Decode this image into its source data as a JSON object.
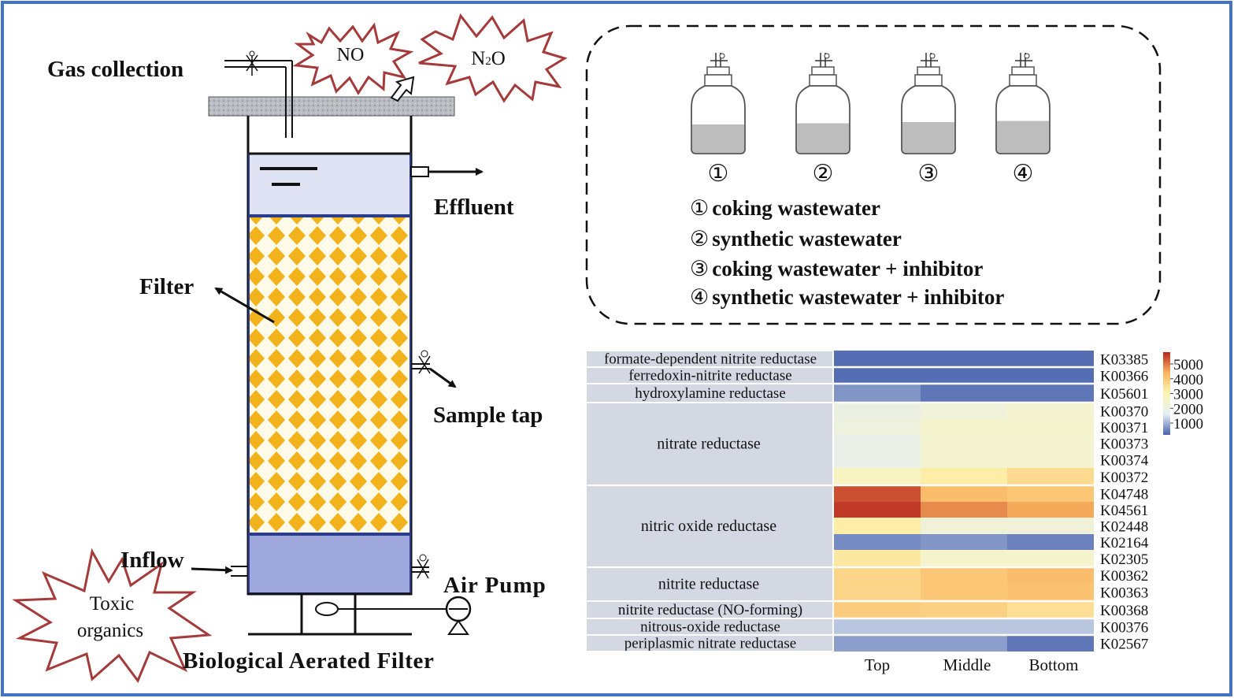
{
  "reactor": {
    "title": "Biological Aerated Filter",
    "gas_collection": "Gas collection",
    "effluent": "Effluent",
    "filter": "Filter",
    "sample_tap": "Sample tap",
    "inflow": "Inflow",
    "air_pump": "Air Pump",
    "toxic_line1": "Toxic",
    "toxic_line2": "organics",
    "gas_no": "NO",
    "gas_n2o_prefix": "N",
    "gas_n2o_sub": "2",
    "gas_n2o_suffix": "O"
  },
  "bottles": {
    "markers": [
      "①",
      "②",
      "③",
      "④"
    ],
    "legend": [
      {
        "marker": "①",
        "text": "coking wastewater"
      },
      {
        "marker": "②",
        "text": "synthetic wastewater"
      },
      {
        "marker": "③",
        "text": "coking wastewater + inhibitor"
      },
      {
        "marker": "④",
        "text": "synthetic wastewater + inhibitor"
      }
    ]
  },
  "chart_data": {
    "type": "heatmap",
    "columns": [
      "Top",
      "Middle",
      "Bottom"
    ],
    "groups": [
      {
        "name": "formate-dependent nitrite reductase",
        "rows": [
          "K03385"
        ]
      },
      {
        "name": "ferredoxin-nitrite reductase",
        "rows": [
          "K00366"
        ]
      },
      {
        "name": "hydroxylamine reductase",
        "rows": [
          "K05601"
        ]
      },
      {
        "name": "nitrate reductase",
        "rows": [
          "K00370",
          "K00371",
          "K00373",
          "K00374",
          "K00372"
        ]
      },
      {
        "name": "nitric oxide reductase",
        "rows": [
          "K04748",
          "K04561",
          "K02448",
          "K02164",
          "K02305"
        ]
      },
      {
        "name": "nitrite reductase",
        "rows": [
          "K00362",
          "K00363"
        ]
      },
      {
        "name": "nitrite reductase (NO-forming)",
        "rows": [
          "K00368"
        ]
      },
      {
        "name": "nitrous-oxide reductase",
        "rows": [
          "K00376"
        ]
      },
      {
        "name": "periplasmic nitrate reductase",
        "rows": [
          "K02567"
        ]
      }
    ],
    "values": [
      [
        300,
        300,
        300
      ],
      [
        300,
        300,
        300
      ],
      [
        700,
        400,
        400
      ],
      [
        2000,
        2200,
        2400
      ],
      [
        2100,
        2500,
        2500
      ],
      [
        1900,
        2400,
        2400
      ],
      [
        1900,
        2400,
        2400
      ],
      [
        2700,
        3200,
        3600
      ],
      [
        5400,
        4200,
        4000
      ],
      [
        5600,
        4800,
        4500
      ],
      [
        3200,
        2200,
        2200
      ],
      [
        600,
        700,
        500
      ],
      [
        3300,
        2500,
        2500
      ],
      [
        3700,
        4000,
        4200
      ],
      [
        3700,
        4000,
        4100
      ],
      [
        3900,
        3800,
        3500
      ],
      [
        1200,
        1200,
        1200
      ],
      [
        800,
        800,
        400
      ]
    ],
    "colorbar": {
      "ticks": [
        5000,
        4000,
        3000,
        2000,
        1000
      ],
      "min": 200,
      "max": 5800
    },
    "colors": [
      "#4a63ad",
      "#e5eef5",
      "#fdf6b3",
      "#fab45f",
      "#b8261f"
    ]
  }
}
